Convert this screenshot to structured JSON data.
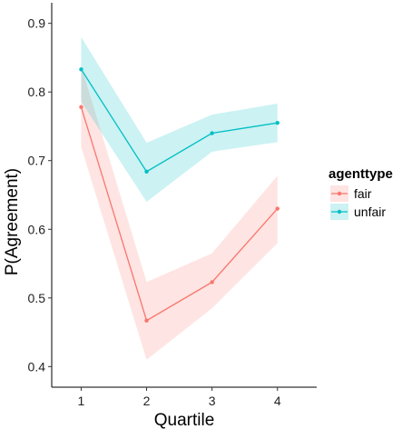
{
  "chart_data": {
    "type": "line",
    "title": "",
    "xlabel": "Quartile",
    "ylabel": "P(Agreement)",
    "x": [
      1,
      2,
      3,
      4
    ],
    "x_tick_labels": [
      "1",
      "2",
      "3",
      "4"
    ],
    "xlim": [
      0.55,
      4.6
    ],
    "ylim": [
      0.37,
      0.93
    ],
    "y_ticks": [
      0.4,
      0.5,
      0.6,
      0.7,
      0.8,
      0.9
    ],
    "y_tick_labels": [
      "0.4",
      "0.5",
      "0.6",
      "0.7",
      "0.8",
      "0.9"
    ],
    "grid": false,
    "legend": {
      "title": "agenttype",
      "placement": "right"
    },
    "series": [
      {
        "name": "fair",
        "color": "#F8766D",
        "band_color": "#F8766D",
        "values": [
          0.778,
          0.467,
          0.523,
          0.63
        ],
        "lower": [
          0.72,
          0.41,
          0.485,
          0.58
        ],
        "upper": [
          0.838,
          0.523,
          0.565,
          0.678
        ]
      },
      {
        "name": "unfair",
        "color": "#00BFC4",
        "band_color": "#00BFC4",
        "values": [
          0.833,
          0.684,
          0.74,
          0.755
        ],
        "lower": [
          0.786,
          0.64,
          0.713,
          0.727
        ],
        "upper": [
          0.88,
          0.726,
          0.767,
          0.783
        ]
      }
    ]
  }
}
